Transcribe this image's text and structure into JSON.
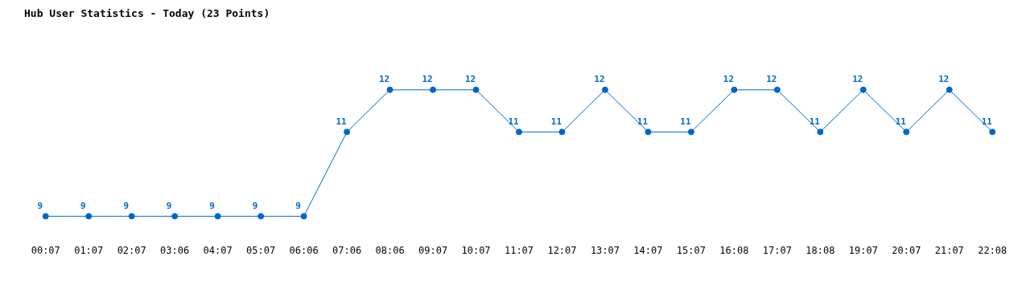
{
  "chart_data": {
    "type": "line",
    "title": "Hub User Statistics - Today (23 Points)",
    "categories": [
      "00:07",
      "01:07",
      "02:07",
      "03:06",
      "04:07",
      "05:07",
      "06:06",
      "07:06",
      "08:06",
      "09:07",
      "10:07",
      "11:07",
      "12:07",
      "13:07",
      "14:07",
      "15:07",
      "16:08",
      "17:07",
      "18:08",
      "19:07",
      "20:07",
      "21:07",
      "22:08"
    ],
    "series": [
      {
        "color": "#0066cc",
        "values": [
          9,
          9,
          9,
          9,
          9,
          9,
          9,
          11,
          12,
          12,
          12,
          11,
          11,
          12,
          11,
          11,
          12,
          12,
          11,
          12,
          11,
          12,
          11
        ]
      }
    ],
    "data_labels": true,
    "marker": "circle",
    "grid": false,
    "legend": false,
    "tick_labels": "x"
  }
}
